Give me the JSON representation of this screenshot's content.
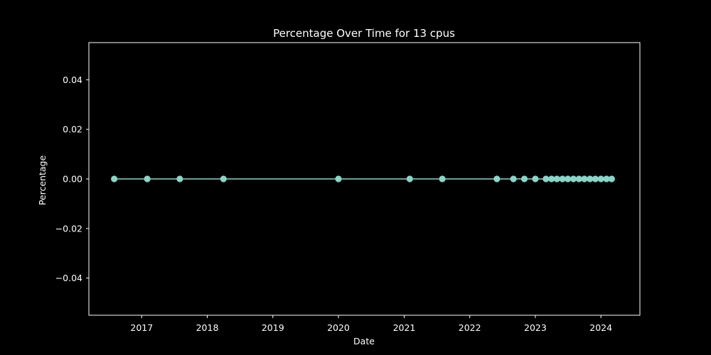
{
  "chart_data": {
    "type": "line",
    "title": "Percentage Over Time for 13 cpus",
    "xlabel": "Date",
    "ylabel": "Percentage",
    "ylim": [
      -0.055,
      0.055
    ],
    "xlim": [
      "2016-03-13",
      "2024-08-05"
    ],
    "yticks": [
      "−0.04",
      "−0.02",
      "0.00",
      "0.02",
      "0.04"
    ],
    "ytick_values": [
      -0.04,
      -0.02,
      0.0,
      0.02,
      0.04
    ],
    "xticks": [
      "2017",
      "2018",
      "2019",
      "2020",
      "2021",
      "2022",
      "2023",
      "2024"
    ],
    "xtick_dates": [
      "2017-01-01",
      "2018-01-01",
      "2019-01-01",
      "2020-01-01",
      "2021-01-01",
      "2022-01-01",
      "2023-01-01",
      "2024-01-01"
    ],
    "grid": false,
    "series": [
      {
        "color": "#8dd3c7",
        "marker": "circle",
        "x": [
          "2016-08-01",
          "2017-02-01",
          "2017-08-01",
          "2018-04-01",
          "2020-01-01",
          "2021-02-01",
          "2021-08-01",
          "2022-06-01",
          "2022-09-01",
          "2022-11-01",
          "2023-01-01",
          "2023-03-01",
          "2023-04-01",
          "2023-05-01",
          "2023-06-01",
          "2023-07-01",
          "2023-08-01",
          "2023-09-01",
          "2023-10-01",
          "2023-11-01",
          "2023-12-01",
          "2024-01-01",
          "2024-02-01",
          "2024-03-01"
        ],
        "values": [
          0,
          0,
          0,
          0,
          0,
          0,
          0,
          0,
          0,
          0,
          0,
          0,
          0,
          0,
          0,
          0,
          0,
          0,
          0,
          0,
          0,
          0,
          0,
          0
        ]
      }
    ]
  }
}
